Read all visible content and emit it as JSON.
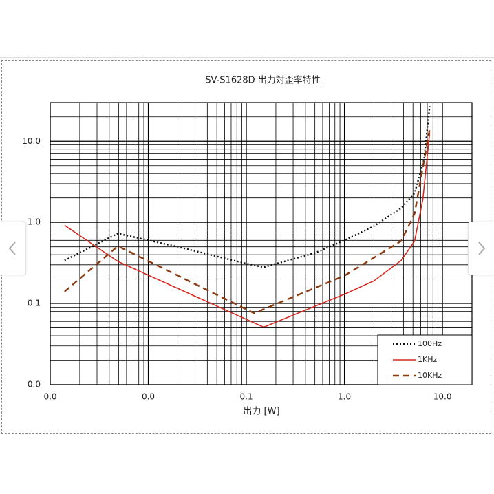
{
  "chart_data": {
    "type": "line",
    "title": "SV-S1628D 出力対歪率特性",
    "xlabel": "出力 [W]",
    "log_x": true,
    "log_y": true,
    "grid": true,
    "legend": "lower right",
    "xlim": [
      0.001,
      20
    ],
    "xticks": [
      {
        "value": 0.001,
        "label": "0.0"
      },
      {
        "value": 0.01,
        "label": "0.0"
      },
      0.1,
      {
        "value": 1,
        "label": "1.0"
      },
      {
        "value": 10,
        "label": "10.0"
      }
    ],
    "ylim": [
      0.01,
      30
    ],
    "yticks": [
      {
        "value": 0.01,
        "label": "0.0"
      },
      0.1,
      {
        "value": 1,
        "label": "1.0"
      },
      {
        "value": 10,
        "label": "10.0"
      }
    ],
    "series": [
      {
        "name": "100Hz",
        "color": "#111111",
        "line_style": "dotted",
        "x": [
          0.0014,
          0.0049,
          0.02,
          0.1,
          0.15,
          0.5,
          1,
          2,
          3.8,
          5.2,
          6.5,
          7.4
        ],
        "values": [
          0.34,
          0.73,
          0.5,
          0.31,
          0.28,
          0.42,
          0.6,
          0.9,
          1.5,
          2.3,
          6,
          27
        ]
      },
      {
        "name": "1KHz",
        "color": "#d42a20",
        "line_style": "solid",
        "x": [
          0.0014,
          0.0049,
          0.15,
          1,
          2,
          3.8,
          5.2,
          6.3,
          7.4
        ],
        "values": [
          0.92,
          0.33,
          0.051,
          0.13,
          0.19,
          0.34,
          0.59,
          1.9,
          12.6
        ]
      },
      {
        "name": "10KHz",
        "color": "#8b3a10",
        "line_style": "dashed",
        "x": [
          0.0014,
          0.0049,
          0.12,
          1,
          3.8,
          5.2,
          7.4
        ],
        "values": [
          0.14,
          0.51,
          0.076,
          0.22,
          0.59,
          1.29,
          14
        ]
      }
    ]
  }
}
